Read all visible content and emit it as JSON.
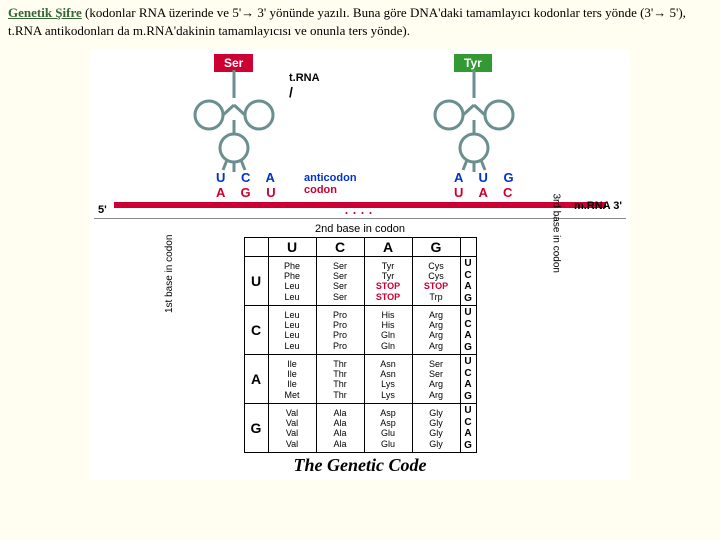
{
  "header": {
    "title": "Genetik Şifre",
    "text_part1": " (kodonlar RNA üzerinde ve 5'→ 3' yönünde yazılı. Buna göre DNA'daki tamamlayıcı kodonlar ters yönde (3'→ 5'), t.RNA antikodonları da m.RNA'dakinin tamamlayıcısı ve onunla ters yönde)."
  },
  "trna": {
    "aa1": "Ser",
    "aa2": "Tyr",
    "label": "t.RNA",
    "anticodon_label": "anticodon",
    "codon_label": "codon",
    "anti1": "U C A",
    "cod1": "A G U",
    "anti2": "A U G",
    "cod2": "U A C",
    "five_prime": "5'",
    "mrna_label": "m.RNA  3'",
    "dots": "....",
    "cloverleaf_color": "#6b8f8f",
    "stem_color": "#444"
  },
  "table": {
    "caption_top": "2nd base in codon",
    "left_label": "1st base in codon",
    "right_label": "3rd base in codon",
    "footer": "The Genetic Code",
    "bases": [
      "U",
      "C",
      "A",
      "G"
    ],
    "cells": {
      "U": {
        "U": [
          "Phe",
          "Phe",
          "Leu",
          "Leu"
        ],
        "C": [
          "Ser",
          "Ser",
          "Ser",
          "Ser"
        ],
        "A": [
          "Tyr",
          "Tyr",
          "STOP",
          "STOP"
        ],
        "G": [
          "Cys",
          "Cys",
          "STOP",
          "Trp"
        ]
      },
      "C": {
        "U": [
          "Leu",
          "Leu",
          "Leu",
          "Leu"
        ],
        "C": [
          "Pro",
          "Pro",
          "Pro",
          "Pro"
        ],
        "A": [
          "His",
          "His",
          "Gln",
          "Gln"
        ],
        "G": [
          "Arg",
          "Arg",
          "Arg",
          "Arg"
        ]
      },
      "A": {
        "U": [
          "Ile",
          "Ile",
          "Ile",
          "Met"
        ],
        "C": [
          "Thr",
          "Thr",
          "Thr",
          "Thr"
        ],
        "A": [
          "Asn",
          "Asn",
          "Lys",
          "Lys"
        ],
        "G": [
          "Ser",
          "Ser",
          "Arg",
          "Arg"
        ]
      },
      "G": {
        "U": [
          "Val",
          "Val",
          "Val",
          "Val"
        ],
        "C": [
          "Ala",
          "Ala",
          "Ala",
          "Ala"
        ],
        "A": [
          "Asp",
          "Asp",
          "Glu",
          "Glu"
        ],
        "G": [
          "Gly",
          "Gly",
          "Gly",
          "Gly"
        ]
      }
    }
  }
}
